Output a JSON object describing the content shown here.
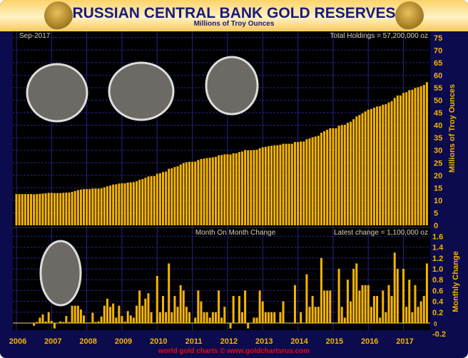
{
  "header": {
    "title": "RUSSIAN CENTRAL BANK GOLD RESERVES",
    "subtitle": "Millions of Troy Ounces",
    "seal_left": "БАНК РОССИИ",
    "seal_right": "БАНК РОССИИ"
  },
  "footer": "world gold charts © www.goldchartsrus.com",
  "colors": {
    "background": "#0b0b4d",
    "plot": "#000000",
    "bar": "#f5b400",
    "grid": "#24248c",
    "axis_text": "#f5b400",
    "footer": "#e01010"
  },
  "chart_data": [
    {
      "type": "bar",
      "title": "",
      "date_label": "Sep-2017",
      "annotation": "Total Holdings = 57,200,000 oz",
      "ylabel": "Millions of Troy Ounces",
      "ylim": [
        0,
        75
      ],
      "yticks": [
        "0",
        "5",
        "10",
        "15",
        "20",
        "25",
        "30",
        "35",
        "40",
        "45",
        "50",
        "55",
        "60",
        "65",
        "70",
        "75"
      ],
      "x_start": "Jan-2006",
      "x_end": "Sep-2017",
      "x_step": "month",
      "grid": true,
      "values": [
        12.5,
        12.5,
        12.5,
        12.5,
        12.5,
        12.5,
        12.4,
        12.5,
        12.6,
        12.7,
        12.8,
        13.0,
        13.0,
        12.9,
        12.9,
        12.9,
        13.0,
        13.1,
        13.1,
        13.4,
        13.7,
        14.1,
        14.3,
        14.5,
        14.5,
        14.5,
        14.7,
        14.7,
        14.7,
        14.8,
        15.2,
        15.6,
        15.9,
        16.3,
        16.4,
        16.7,
        16.8,
        16.8,
        17.1,
        17.2,
        17.3,
        17.6,
        18.2,
        18.5,
        19.0,
        19.5,
        19.7,
        19.7,
        20.6,
        20.8,
        21.3,
        21.5,
        22.6,
        22.8,
        23.3,
        23.6,
        24.3,
        24.9,
        25.2,
        25.4,
        25.4,
        25.5,
        26.1,
        26.5,
        26.7,
        26.9,
        27.0,
        27.2,
        27.4,
        28.0,
        28.1,
        28.4,
        28.4,
        28.3,
        28.8,
        28.8,
        29.3,
        29.5,
        30.1,
        30.0,
        30.0,
        30.1,
        30.2,
        30.8,
        31.2,
        31.4,
        31.6,
        31.8,
        32.0,
        32.0,
        32.2,
        32.6,
        32.6,
        32.6,
        32.6,
        33.3,
        33.3,
        33.5,
        33.5,
        34.4,
        34.7,
        35.2,
        35.5,
        35.8,
        37.0,
        37.6,
        38.2,
        38.8,
        38.8,
        38.8,
        39.8,
        40.1,
        40.2,
        41.0,
        41.4,
        42.4,
        43.5,
        44.1,
        44.8,
        45.5,
        46.2,
        46.5,
        47.0,
        47.5,
        47.6,
        48.2,
        48.4,
        49.1,
        49.6,
        50.9,
        51.9,
        51.9,
        52.9,
        53.2,
        54.0,
        54.2,
        54.9,
        55.2,
        55.6,
        56.1,
        57.2
      ]
    },
    {
      "type": "bar",
      "title": "Month On Month Change",
      "annotation": "Latest change = 1,100,000 oz",
      "ylabel": "Monthly Change",
      "ylim": [
        -0.2,
        1.6
      ],
      "yticks": [
        "-0.2",
        "0",
        "0.2",
        "0.4",
        "0.6",
        "0.8",
        "1.0",
        "1.2",
        "1.4",
        "1.6"
      ],
      "xticks": [
        "2006",
        "2007",
        "2008",
        "2009",
        "2010",
        "2011",
        "2012",
        "2013",
        "2014",
        "2015",
        "2016",
        "2017"
      ],
      "grid": true,
      "values": [
        0,
        0,
        0,
        0,
        0,
        0,
        -0.05,
        0.02,
        0.1,
        0.16,
        0.03,
        0.2,
        0.04,
        -0.1,
        0,
        0.03,
        0.02,
        0.13,
        0.02,
        0.32,
        0.32,
        0.32,
        0.25,
        0.14,
        0.01,
        0.01,
        0.19,
        0.02,
        0.03,
        0.12,
        0.32,
        0.45,
        0.3,
        0.36,
        0.1,
        0.32,
        0.13,
        0.03,
        0.22,
        0.14,
        0.1,
        0.32,
        0.6,
        0.32,
        0.45,
        0.55,
        0.2,
        0,
        0.87,
        0.2,
        0.5,
        0.2,
        1.1,
        0.2,
        0.5,
        0.3,
        0.7,
        0.6,
        0.3,
        0.2,
        0,
        0.1,
        0.6,
        0.4,
        0.2,
        0.2,
        0.1,
        0.2,
        0.2,
        0.6,
        0.1,
        0.3,
        0,
        -0.1,
        0.5,
        0,
        0.5,
        0.2,
        0.6,
        -0.1,
        0,
        0.1,
        0.1,
        0.6,
        0.4,
        0.2,
        0.2,
        0.2,
        0.2,
        0,
        0.2,
        0.4,
        0,
        0,
        0,
        0.7,
        0,
        0.2,
        0,
        0.9,
        0.3,
        0.5,
        0.3,
        0.3,
        1.2,
        0.6,
        0.6,
        0.6,
        0,
        0,
        1.0,
        0.3,
        0.1,
        0.8,
        0.4,
        1.0,
        1.1,
        0.6,
        0.7,
        0.7,
        0.7,
        0.3,
        0.5,
        0.5,
        0.1,
        0.6,
        0.2,
        0.7,
        0.5,
        1.3,
        1.0,
        0,
        1.0,
        0.3,
        0.8,
        0.2,
        0.7,
        0.3,
        0.4,
        0.5,
        1.1
      ]
    }
  ]
}
